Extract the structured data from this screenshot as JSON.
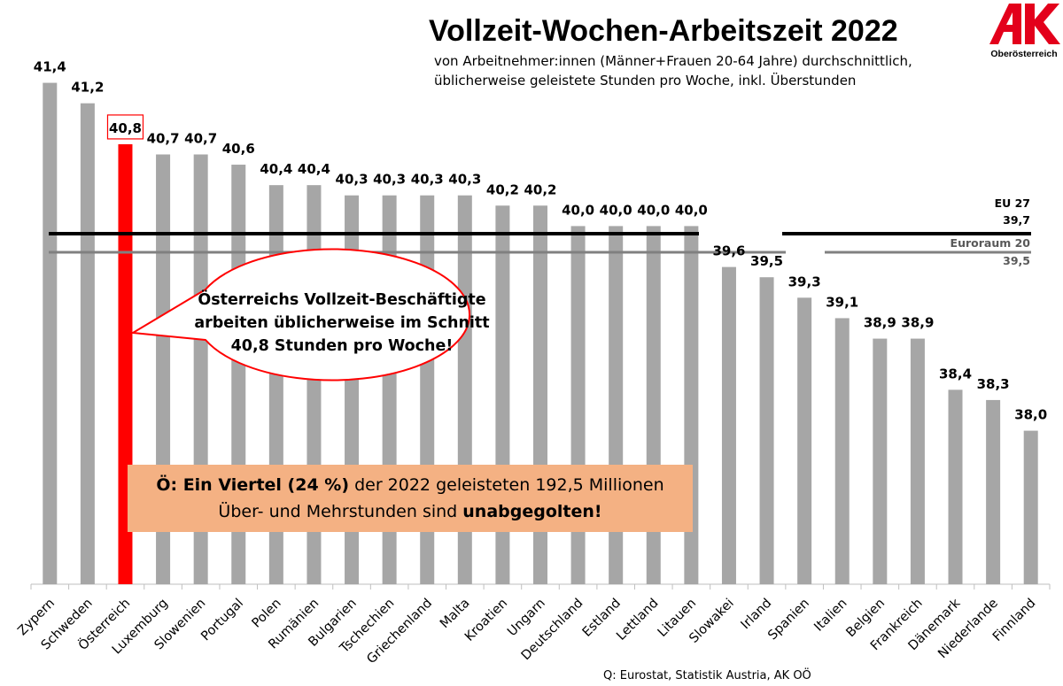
{
  "header": {
    "title": "Vollzeit-Wochen-Arbeitszeit 2022",
    "subtitle_line1": "von Arbeitnehmer:innen (Männer+Frauen 20-64 Jahre) durchschnittlich,",
    "subtitle_line2": "üblicherweise geleistete Stunden pro Woche, inkl. Überstunden"
  },
  "logo": {
    "letters": "AK",
    "word": "Oberösterreich",
    "color": "#e3001b"
  },
  "colors": {
    "bar": "#a6a6a6",
    "highlight": "#ff0000",
    "eu27_line": "#000000",
    "euroraum_line": "#808080",
    "infobox_bg": "#f4b183"
  },
  "chart_data": {
    "type": "bar",
    "categories": [
      "Zypern",
      "Schweden",
      "Österreich",
      "Luxemburg",
      "Slowenien",
      "Portugal",
      "Polen",
      "Rumänien",
      "Bulgarien",
      "Tschechien",
      "Griechenland",
      "Malta",
      "Kroatien",
      "Ungarn",
      "Deutschland",
      "Estland",
      "Lettland",
      "Litauen",
      "Slowakei",
      "Irland",
      "Spanien",
      "Italien",
      "Belgien",
      "Frankreich",
      "Dänemark",
      "Niederlande",
      "Finnland"
    ],
    "values": [
      41.4,
      41.2,
      40.8,
      40.7,
      40.7,
      40.6,
      40.4,
      40.4,
      40.3,
      40.3,
      40.3,
      40.3,
      40.2,
      40.2,
      40.0,
      40.0,
      40.0,
      40.0,
      39.6,
      39.5,
      39.3,
      39.1,
      38.9,
      38.9,
      38.4,
      38.3,
      38.0
    ],
    "value_labels": [
      "41,4",
      "41,2",
      "40,8",
      "40,7",
      "40,7",
      "40,6",
      "40,4",
      "40,4",
      "40,3",
      "40,3",
      "40,3",
      "40,3",
      "40,2",
      "40,2",
      "40,0",
      "40,0",
      "40,0",
      "40,0",
      "39,6",
      "39,5",
      "39,3",
      "39,1",
      "38,9",
      "38,9",
      "38,4",
      "38,3",
      "38,0"
    ],
    "highlight_category": "Österreich",
    "ylim": [
      36.5,
      41.5
    ],
    "grid": false,
    "reference_lines": [
      {
        "name": "EU 27",
        "value": 39.7,
        "label": "39,7"
      },
      {
        "name": "Euroraum 20",
        "value": 39.5,
        "label": "39,5"
      }
    ]
  },
  "callout": {
    "line1": "Österreichs Vollzeit-Beschäftigte",
    "line2": "arbeiten üblicherweise im Schnitt",
    "line3": "40,8 Stunden pro Woche!"
  },
  "infobox": {
    "bold_prefix": "Ö: Ein Viertel (24 %)",
    "text1": " der 2022 geleisteten 192,5 Millionen",
    "text2": "Über- und Mehrstunden sind ",
    "bold_suffix": "unabgegolten!"
  },
  "source": "Q: Eurostat, Statistik Austria, AK OÖ"
}
